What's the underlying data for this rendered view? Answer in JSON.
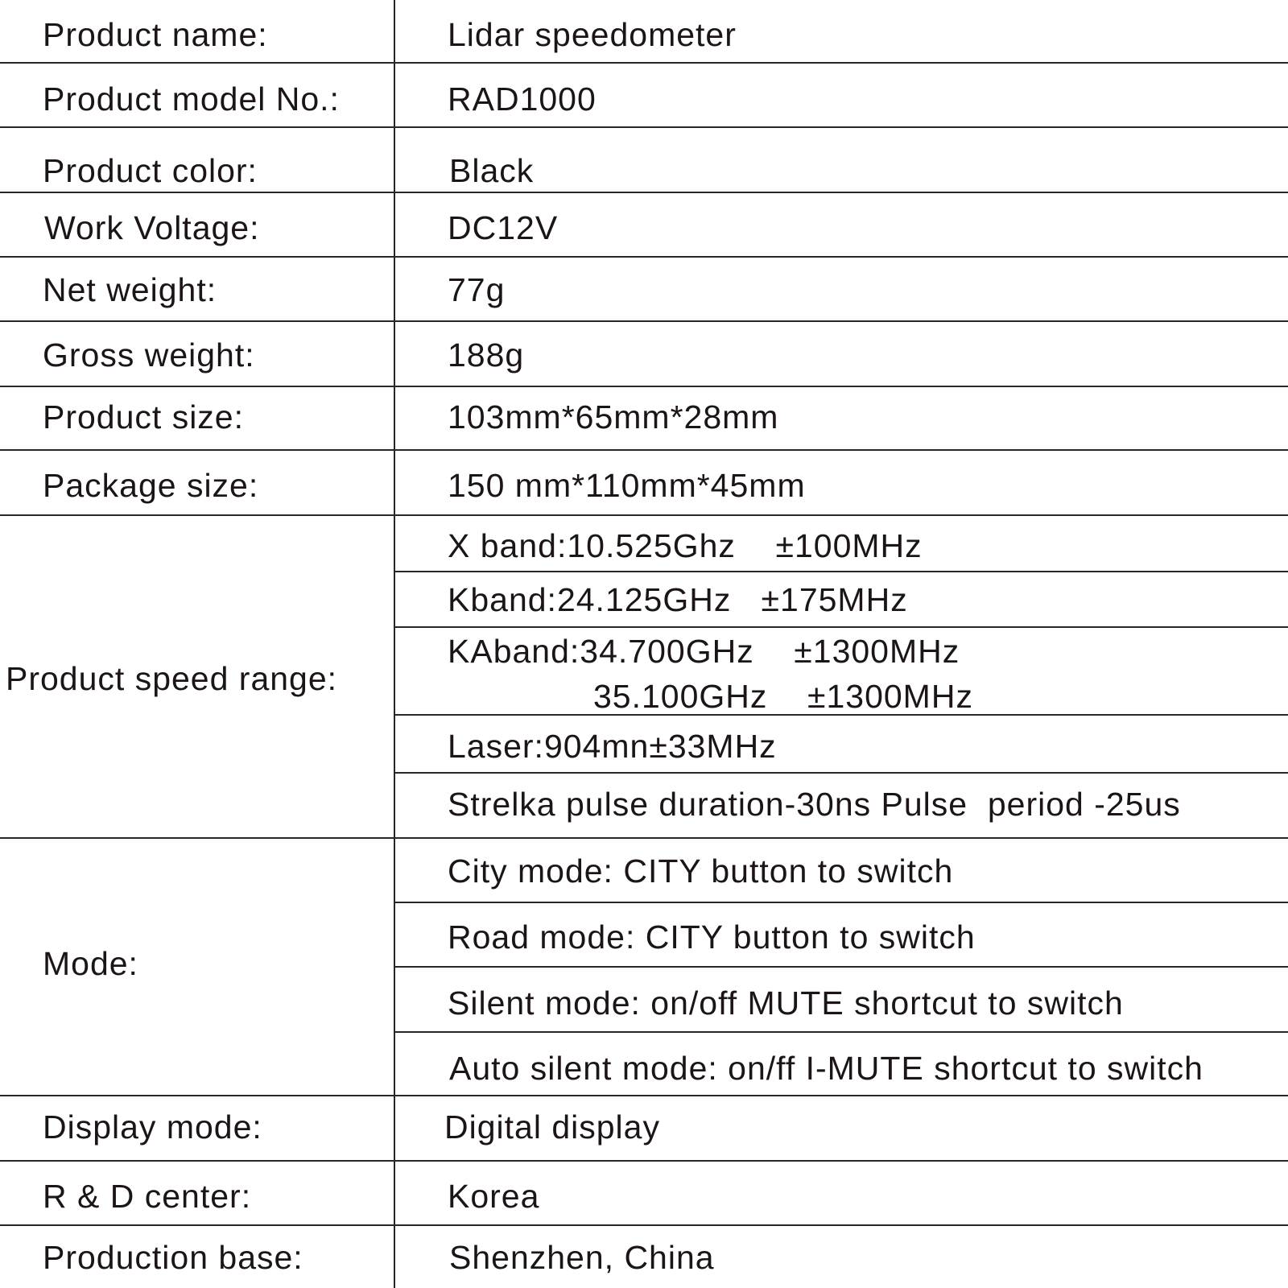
{
  "rows": [
    {
      "label": "Product name:",
      "value": "Lidar speedometer"
    },
    {
      "label": "Product model No.:",
      "value": "RAD1000"
    },
    {
      "label": "Product color:",
      "value": "Black"
    },
    {
      "label": "Work Voltage:",
      "value": "DC12V"
    },
    {
      "label": "Net weight:",
      "value": "77g"
    },
    {
      "label": "Gross weight:",
      "value": "188g"
    },
    {
      "label": "Product size:",
      "value": "103mm*65mm*28mm"
    },
    {
      "label": "Package size:",
      "value": "150 mm*110mm*45mm"
    }
  ],
  "speed_range": {
    "label": "Product speed range:",
    "values": [
      "X band:10.525Ghz    ±100MHz",
      "Kband:24.125GHz   ±175MHz",
      "KAband:34.700GHz    ±1300MHz",
      "35.100GHz    ±1300MHz",
      "Laser:904mn±33MHz",
      "Strelka pulse duration-30ns Pulse  period -25us"
    ]
  },
  "mode": {
    "label": "Mode:",
    "values": [
      "City mode: CITY button to switch",
      "Road mode: CITY button to switch",
      "Silent mode: on/off MUTE shortcut to switch",
      "Auto silent mode: on/ff I-MUTE shortcut to switch"
    ]
  },
  "footer_rows": [
    {
      "label": "Display mode:",
      "value": "Digital display"
    },
    {
      "label": "R & D center:",
      "value": "Korea"
    },
    {
      "label": "Production base:",
      "value": "Shenzhen, China"
    }
  ]
}
